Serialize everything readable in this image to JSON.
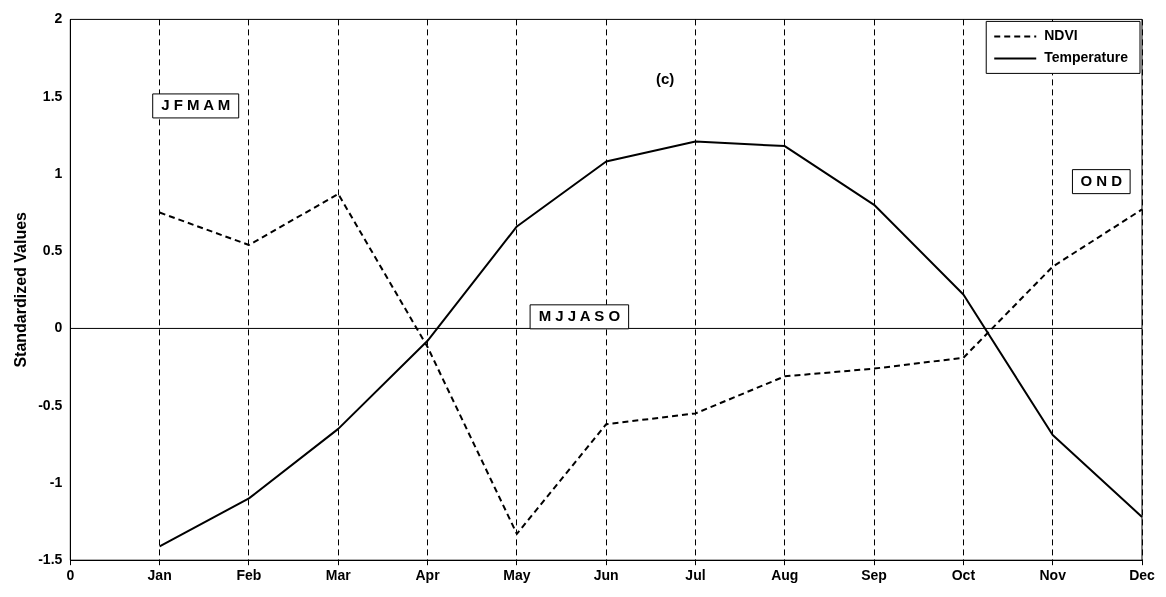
{
  "chart_data": {
    "type": "line",
    "title": "(c)",
    "ylabel": "Standardized Values",
    "categories": [
      "0",
      "Jan",
      "Feb",
      "Mar",
      "Apr",
      "May",
      "Jun",
      "Jul",
      "Aug",
      "Sep",
      "Oct",
      "Nov",
      "Dec"
    ],
    "ylim": [
      -1.5,
      2
    ],
    "yticks": [
      -1.5,
      -1,
      -0.5,
      0,
      0.5,
      1,
      1.5,
      2
    ],
    "grid": "x",
    "legend": "top right",
    "marker": "none",
    "ref_lines": [
      {
        "axis": "y",
        "value": 0,
        "color": "#000000"
      }
    ],
    "annotations": [
      "J F M A M",
      "M J J A S O",
      "O N D"
    ],
    "series": [
      {
        "name": "NDVI",
        "color": "#000000",
        "line_style": "dashed",
        "values": [
          null,
          0.75,
          0.54,
          0.87,
          -0.12,
          -1.33,
          -0.62,
          -0.55,
          -0.31,
          -0.26,
          -0.19,
          0.4,
          0.77
        ]
      },
      {
        "name": "Temperature",
        "color": "#000000",
        "line_style": "solid",
        "values": [
          null,
          -1.41,
          -1.1,
          -0.65,
          -0.08,
          0.66,
          1.08,
          1.21,
          1.18,
          0.8,
          0.22,
          -0.69,
          -1.22
        ]
      }
    ]
  }
}
